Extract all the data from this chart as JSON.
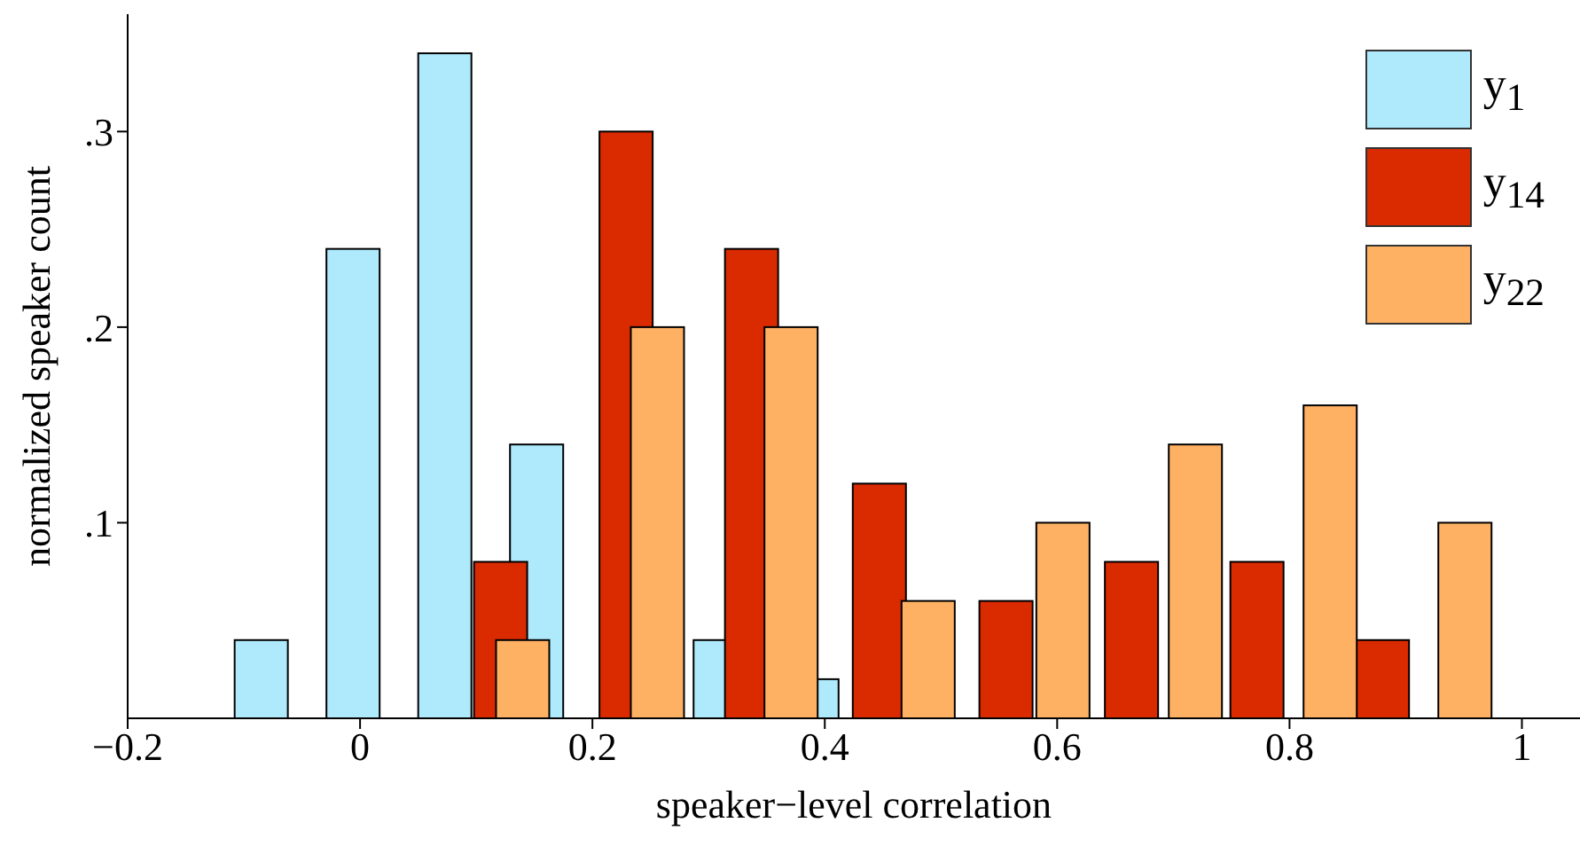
{
  "chart_data": {
    "type": "bar",
    "xlabel": "speaker−level correlation",
    "ylabel": "normalized speaker count",
    "xlim": [
      -0.2,
      1.05
    ],
    "xticks": [
      -0.2,
      0,
      0.2,
      0.4,
      0.6,
      0.8,
      1
    ],
    "ylim": [
      0,
      0.36
    ],
    "yticks": [
      {
        "value": 0.1,
        "label": ".1"
      },
      {
        "value": 0.2,
        "label": ".2"
      },
      {
        "value": 0.3,
        "label": ".3"
      }
    ],
    "legend": "top right",
    "series": [
      {
        "name": "y$_{1}$",
        "color": "#aeeafc",
        "x": [
          -0.085,
          -0.006,
          0.073,
          0.152,
          0.231,
          0.31,
          0.389
        ],
        "values": [
          0.04,
          0.24,
          0.34,
          0.14,
          null,
          0.04,
          0.02
        ]
      },
      {
        "name": "y$_{14}$",
        "color": "#d92a00",
        "x": [
          0.121,
          0.229,
          0.337,
          0.447,
          0.556,
          0.664,
          0.772,
          0.88
        ],
        "values": [
          0.08,
          0.3,
          0.24,
          0.12,
          0.06,
          0.08,
          0.08,
          0.04
        ]
      },
      {
        "name": "y$_{22}$",
        "color": "#ffb163",
        "x": [
          0.14,
          0.256,
          0.371,
          0.489,
          0.605,
          0.719,
          0.835,
          0.951
        ],
        "values": [
          0.04,
          0.2,
          0.2,
          0.06,
          0.1,
          0.14,
          0.16,
          0.1
        ]
      }
    ]
  }
}
